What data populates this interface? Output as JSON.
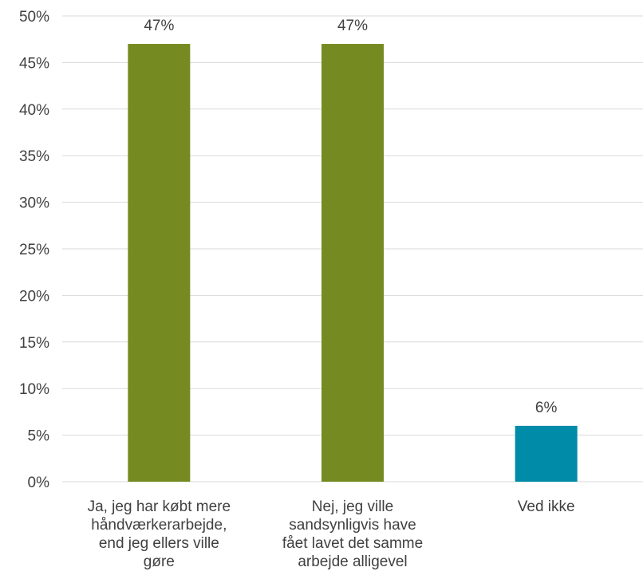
{
  "chart_data": {
    "type": "bar",
    "categories": [
      [
        "Ja, jeg har købt mere",
        "håndværkerarbejde,",
        "end jeg ellers ville",
        "gøre"
      ],
      [
        "Nej, jeg ville",
        "sandsynligvis have",
        "fået lavet det samme",
        "arbejde alligevel"
      ],
      [
        "Ved ikke"
      ]
    ],
    "values": [
      47,
      47,
      6
    ],
    "data_labels": [
      "47%",
      "47%",
      "6%"
    ],
    "colors": [
      "#758B21",
      "#758B21",
      "#008BA8"
    ],
    "y_ticks": [
      "0%",
      "5%",
      "10%",
      "15%",
      "20%",
      "25%",
      "30%",
      "35%",
      "40%",
      "45%",
      "50%"
    ],
    "ylim": [
      0,
      50
    ],
    "title": "",
    "xlabel": "",
    "ylabel": "",
    "grid": true,
    "legend": "none"
  }
}
